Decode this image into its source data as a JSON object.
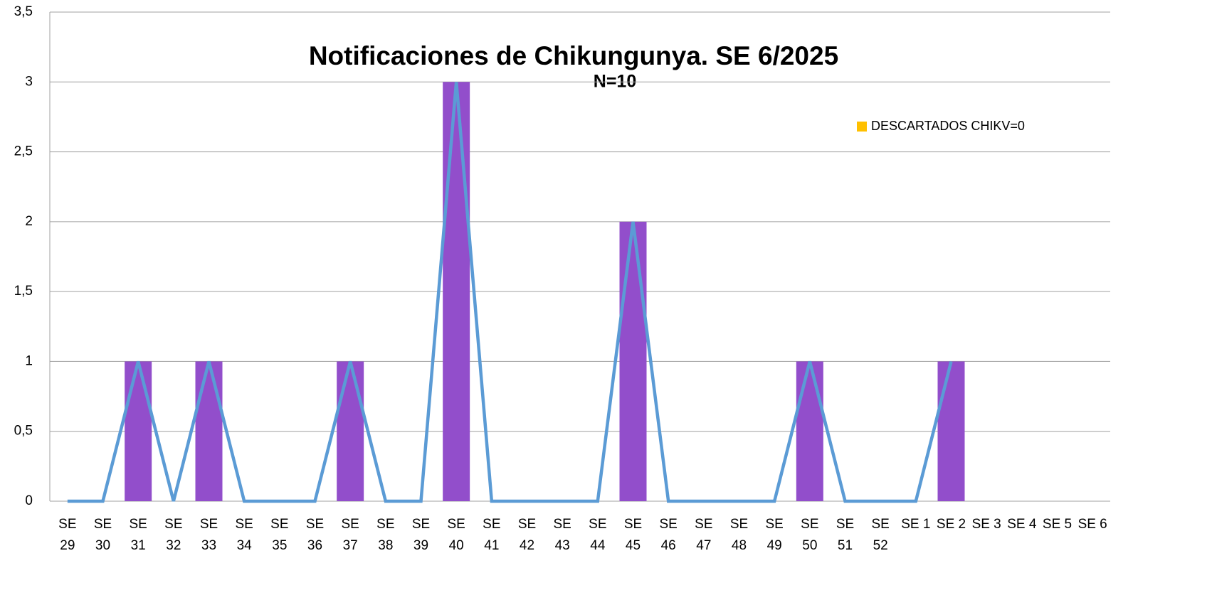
{
  "chart_data": {
    "type": "bar",
    "title": "Notificaciones de Chikungunya. SE  6/2025",
    "subtitle": "N=10",
    "categories": [
      "SE 29",
      "SE 30",
      "SE 31",
      "SE 32",
      "SE 33",
      "SE 34",
      "SE 35",
      "SE 36",
      "SE 37",
      "SE 38",
      "SE 39",
      "SE 40",
      "SE 41",
      "SE 42",
      "SE 43",
      "SE 44",
      "SE 45",
      "SE 46",
      "SE 47",
      "SE 48",
      "SE 49",
      "SE 50",
      "SE 51",
      "SE 52",
      "SE 1",
      "SE 2",
      "SE 3",
      "SE 4",
      "SE 5",
      "SE 6"
    ],
    "series": [
      {
        "type": "bar",
        "color": "#924ecb",
        "values": [
          0,
          0,
          1,
          0,
          1,
          0,
          0,
          0,
          1,
          0,
          0,
          3,
          0,
          0,
          0,
          0,
          2,
          0,
          0,
          0,
          0,
          1,
          0,
          0,
          0,
          1,
          null,
          null,
          null,
          null
        ]
      },
      {
        "type": "line",
        "color": "#5b9bd5",
        "values": [
          0,
          0,
          1,
          0,
          1,
          0,
          0,
          0,
          1,
          0,
          0,
          3,
          0,
          0,
          0,
          0,
          2,
          0,
          0,
          0,
          0,
          1,
          0,
          0,
          0,
          1,
          null,
          null,
          null,
          null
        ]
      },
      {
        "type": "bar",
        "name": "DESCARTADOS CHIKV=0",
        "color": "#ffc000",
        "values": [
          0,
          0,
          0,
          0,
          0,
          0,
          0,
          0,
          0,
          0,
          0,
          0,
          0,
          0,
          0,
          0,
          0,
          0,
          0,
          0,
          0,
          0,
          0,
          0,
          0,
          0,
          null,
          null,
          null,
          null
        ]
      }
    ],
    "ylim": [
      0,
      3.5
    ],
    "yticks": [
      0,
      {
        "value": 0.5,
        "label": "0,5"
      },
      1,
      {
        "value": 1.5,
        "label": "1,5"
      },
      2,
      {
        "value": 2.5,
        "label": "2,5"
      },
      3,
      {
        "value": 3.5,
        "label": "3,5"
      }
    ],
    "grid": true,
    "legend": "top-right"
  }
}
